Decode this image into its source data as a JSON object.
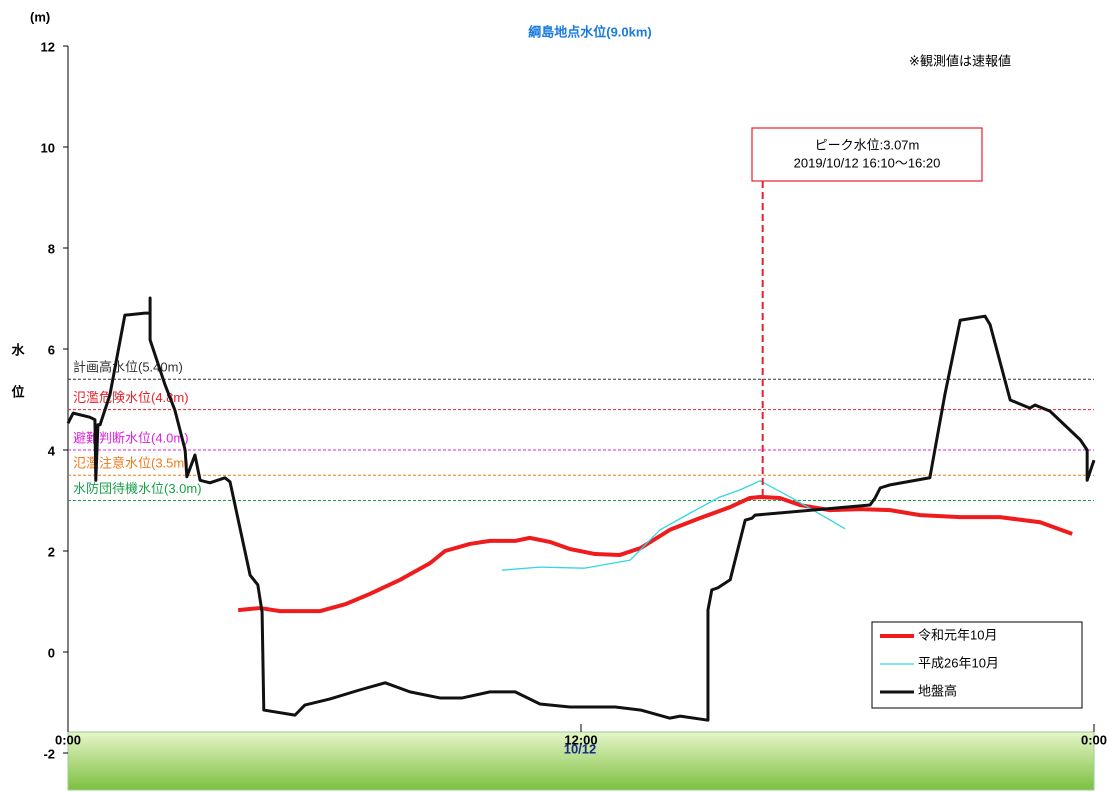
{
  "chart_data": {
    "type": "line",
    "title": "綱島地点水位(9.0km)",
    "y_unit": "(m)",
    "y_label": [
      "水",
      "位"
    ],
    "note": "※観測値は速報値",
    "date_label": "10/12",
    "xlim": [
      0,
      24
    ],
    "xticks": [
      {
        "value": 0,
        "label": "0:00"
      },
      {
        "value": 12,
        "label": "12:00"
      },
      {
        "value": 24,
        "label": "0:00"
      }
    ],
    "ylim": [
      -2,
      12
    ],
    "yticks": [
      -2,
      0,
      2,
      4,
      6,
      8,
      10,
      12
    ],
    "legend": "lower right",
    "reference_lines": [
      {
        "label": "計画高水位(5.40m)",
        "value": 5.4,
        "color": "#333333"
      },
      {
        "label": "氾濫危険水位(4.8m)",
        "value": 4.8,
        "color": "#e8202a"
      },
      {
        "label": "避難判断水位(4.0m)",
        "value": 4.0,
        "color": "#e020e0"
      },
      {
        "label": "氾濫注意水位(3.5m)",
        "value": 3.5,
        "color": "#f07a1a"
      },
      {
        "label": "水防団待機水位(3.0m)",
        "value": 3.0,
        "color": "#1aa04a"
      }
    ],
    "peak": {
      "x": 16.25,
      "value": 3.07,
      "label": "ピーク水位:3.07m",
      "time": "2019/10/12 16:10〜16:20",
      "color": "#e8202a"
    },
    "series": [
      {
        "name": "令和元年10月",
        "color": "#ee1c1c",
        "width": 4,
        "x": [
          3.98,
          4.5,
          4.96,
          5.9,
          6.5,
          7.06,
          7.77,
          8.47,
          8.82,
          9.4,
          9.87,
          10.46,
          10.8,
          11.27,
          11.74,
          12.33,
          12.9,
          13.4,
          14.08,
          14.78,
          15.49,
          15.95,
          16.19,
          16.65,
          17.12,
          17.82,
          18.53,
          19.23,
          19.93,
          20.87,
          21.8,
          22.74,
          23.49
        ],
        "values": [
          0.83,
          0.87,
          0.81,
          0.81,
          0.95,
          1.15,
          1.43,
          1.76,
          2.0,
          2.14,
          2.2,
          2.2,
          2.26,
          2.18,
          2.04,
          1.94,
          1.92,
          2.06,
          2.42,
          2.65,
          2.87,
          3.05,
          3.07,
          3.05,
          2.91,
          2.81,
          2.83,
          2.81,
          2.71,
          2.67,
          2.67,
          2.57,
          2.34
        ]
      },
      {
        "name": "平成26年10月",
        "color": "#33d6e6",
        "width": 1.3,
        "x": [
          10.15,
          11.04,
          12.09,
          13.15,
          13.85,
          14.55,
          15.25,
          15.72,
          16.19,
          16.89,
          17.59,
          18.18
        ],
        "values": [
          1.62,
          1.68,
          1.66,
          1.82,
          2.42,
          2.75,
          3.07,
          3.21,
          3.39,
          3.07,
          2.73,
          2.44
        ]
      },
      {
        "name": "地盤高",
        "color": "#111111",
        "width": 3,
        "x": [
          0,
          0.12,
          0.51,
          0.63,
          0.65,
          0.7,
          0.75,
          0.98,
          1.33,
          1.8,
          1.92,
          1.92,
          1.92,
          2.27,
          2.5,
          2.74,
          2.78,
          2.97,
          3.09,
          3.32,
          3.67,
          3.79,
          4.26,
          4.44,
          4.54,
          4.58,
          5.31,
          5.54,
          6.13,
          6.83,
          7.42,
          8.0,
          8.7,
          9.22,
          9.87,
          10.46,
          11.04,
          11.74,
          12.8,
          13.4,
          14.08,
          14.32,
          14.97,
          14.97,
          15.06,
          15.2,
          15.49,
          15.84,
          16.0,
          16.07,
          18.76,
          18.88,
          19.0,
          19.23,
          20.16,
          20.51,
          20.87,
          21.45,
          21.57,
          22.04,
          22.5,
          22.62,
          22.97,
          23.68,
          23.84,
          23.84,
          24
        ],
        "values": [
          4.53,
          4.73,
          4.65,
          4.6,
          3.4,
          4.5,
          4.5,
          5.09,
          6.67,
          6.71,
          6.71,
          7.01,
          6.18,
          5.29,
          4.79,
          4.0,
          3.47,
          3.9,
          3.4,
          3.35,
          3.45,
          3.37,
          1.52,
          1.33,
          0.79,
          -1.15,
          -1.25,
          -1.05,
          -0.93,
          -0.75,
          -0.61,
          -0.79,
          -0.91,
          -0.91,
          -0.79,
          -0.79,
          -1.03,
          -1.09,
          -1.09,
          -1.15,
          -1.31,
          -1.27,
          -1.35,
          0.83,
          1.23,
          1.27,
          1.43,
          2.61,
          2.65,
          2.71,
          2.91,
          3.05,
          3.25,
          3.31,
          3.45,
          5.09,
          6.57,
          6.65,
          6.48,
          4.99,
          4.83,
          4.89,
          4.77,
          4.2,
          4.0,
          3.4,
          3.8
        ]
      }
    ]
  }
}
